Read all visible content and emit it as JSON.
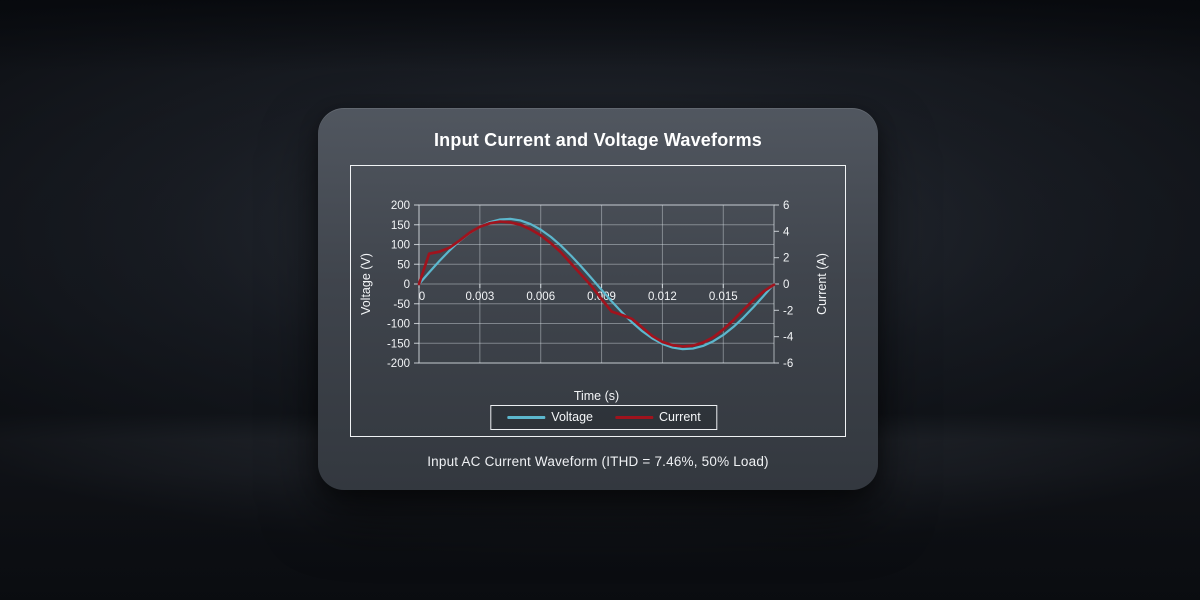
{
  "card": {
    "title": "Input Current and Voltage Waveforms",
    "caption": "Input AC Current Waveform (ITHD = 7.46%, 50% Load)"
  },
  "colors": {
    "voltage_line": "#5cb7cd",
    "current_line": "#a0131d",
    "grid": "rgba(220,226,232,0.42)",
    "axis_text": "#f2f4f6",
    "frame_border": "#f4f6f8"
  },
  "chart_data": {
    "type": "line",
    "title": "Input Current and Voltage Waveforms",
    "xlabel": "Time (s)",
    "ylabel_left": "Voltage (V)",
    "ylabel_right": "Current (A)",
    "grid": true,
    "legend_position": "bottom",
    "xlim": [
      0,
      0.0175
    ],
    "xticks": [
      0,
      0.003,
      0.006,
      0.009,
      0.012,
      0.015
    ],
    "ylim_left": [
      -200,
      200
    ],
    "yticks_left": [
      200,
      150,
      100,
      50,
      0,
      -50,
      -100,
      -150,
      -200
    ],
    "ylim_right": [
      -6,
      6
    ],
    "yticks_right": [
      6,
      4,
      2,
      0,
      -2,
      -4,
      -6
    ],
    "x": [
      0,
      0.0005,
      0.001,
      0.0015,
      0.002,
      0.0025,
      0.003,
      0.0035,
      0.004,
      0.0045,
      0.005,
      0.0055,
      0.006,
      0.0065,
      0.007,
      0.0075,
      0.008,
      0.0085,
      0.009,
      0.0095,
      0.01,
      0.0105,
      0.011,
      0.0115,
      0.012,
      0.0125,
      0.013,
      0.0135,
      0.014,
      0.0145,
      0.015,
      0.0155,
      0.016,
      0.0165,
      0.017,
      0.0175
    ],
    "series": [
      {
        "name": "Voltage",
        "axis": "left",
        "units": "V",
        "color": "#5cb7cd",
        "values": [
          0,
          29.5,
          58.0,
          84.6,
          108.6,
          129.0,
          145.2,
          156.9,
          163.5,
          164.8,
          160.9,
          151.7,
          137.7,
          119.3,
          97.0,
          71.6,
          43.9,
          14.8,
          -14.8,
          -43.9,
          -71.6,
          -97.0,
          -119.3,
          -137.7,
          -151.7,
          -160.9,
          -164.8,
          -163.5,
          -156.9,
          -145.2,
          -129.0,
          -108.6,
          -84.6,
          -58.0,
          -29.5,
          0
        ]
      },
      {
        "name": "Current",
        "axis": "right",
        "units": "A",
        "color": "#a0131d",
        "values": [
          0,
          2.3,
          2.45,
          2.75,
          3.3,
          3.9,
          4.35,
          4.62,
          4.74,
          4.68,
          4.5,
          4.15,
          3.7,
          3.1,
          2.4,
          1.55,
          0.7,
          -0.15,
          -1.15,
          -2.1,
          -2.35,
          -2.65,
          -3.3,
          -3.95,
          -4.4,
          -4.65,
          -4.74,
          -4.68,
          -4.45,
          -4.05,
          -3.45,
          -2.75,
          -1.95,
          -1.2,
          -0.55,
          -0.05
        ]
      }
    ]
  }
}
